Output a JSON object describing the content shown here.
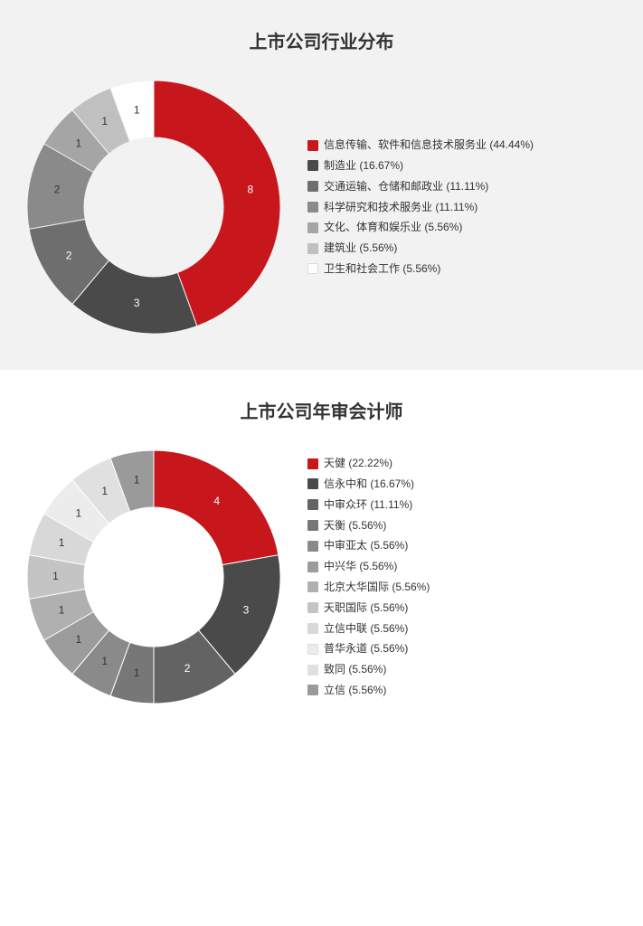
{
  "chart1": {
    "type": "donut",
    "title": "上市公司行业分布",
    "panel_bg": "#f2f2f2",
    "donut_bg": "#f2f2f2",
    "size": 300,
    "inner_ratio": 0.55,
    "title_fontsize": 20,
    "label_fontsize": 12,
    "legend_fontsize": 12,
    "slices": [
      {
        "label": "信息传输、软件和信息技术服务业",
        "value": 8,
        "pct": "44.44%",
        "color": "#c8161d",
        "label_color": "light"
      },
      {
        "label": "制造业",
        "value": 3,
        "pct": "16.67%",
        "color": "#4a4a4a",
        "label_color": "light"
      },
      {
        "label": "交通运输、仓储和邮政业",
        "value": 2,
        "pct": "11.11%",
        "color": "#6e6e6e",
        "label_color": "light"
      },
      {
        "label": "科学研究和技术服务业",
        "value": 2,
        "pct": "11.11%",
        "color": "#8a8a8a",
        "label_color": "dark"
      },
      {
        "label": "文化、体育和娱乐业",
        "value": 1,
        "pct": "5.56%",
        "color": "#a5a5a5",
        "label_color": "dark"
      },
      {
        "label": "建筑业",
        "value": 1,
        "pct": "5.56%",
        "color": "#c0c0c0",
        "label_color": "dark"
      },
      {
        "label": "卫生和社会工作",
        "value": 1,
        "pct": "5.56%",
        "color": "#ffffff",
        "label_color": "dark"
      }
    ]
  },
  "chart2": {
    "type": "donut",
    "title": "上市公司年审会计师",
    "panel_bg": "#ffffff",
    "donut_bg": "#ffffff",
    "size": 300,
    "inner_ratio": 0.55,
    "title_fontsize": 20,
    "label_fontsize": 12,
    "legend_fontsize": 12,
    "slices": [
      {
        "label": "天健",
        "value": 4,
        "pct": "22.22%",
        "color": "#c8161d",
        "label_color": "light"
      },
      {
        "label": "信永中和",
        "value": 3,
        "pct": "16.67%",
        "color": "#4a4a4a",
        "label_color": "light"
      },
      {
        "label": "中审众环",
        "value": 2,
        "pct": "11.11%",
        "color": "#636363",
        "label_color": "light"
      },
      {
        "label": "天衡",
        "value": 1,
        "pct": "5.56%",
        "color": "#777777",
        "label_color": "dark"
      },
      {
        "label": "中审亚太",
        "value": 1,
        "pct": "5.56%",
        "color": "#8a8a8a",
        "label_color": "dark"
      },
      {
        "label": "中兴华",
        "value": 1,
        "pct": "5.56%",
        "color": "#9c9c9c",
        "label_color": "dark"
      },
      {
        "label": "北京大华国际",
        "value": 1,
        "pct": "5.56%",
        "color": "#b0b0b0",
        "label_color": "dark"
      },
      {
        "label": "天职国际",
        "value": 1,
        "pct": "5.56%",
        "color": "#c4c4c4",
        "label_color": "dark"
      },
      {
        "label": "立信中联",
        "value": 1,
        "pct": "5.56%",
        "color": "#d8d8d8",
        "label_color": "dark"
      },
      {
        "label": "普华永道",
        "value": 1,
        "pct": "5.56%",
        "color": "#ececec",
        "label_color": "dark"
      },
      {
        "label": "致同",
        "value": 1,
        "pct": "5.56%",
        "color": "#e0e0e0",
        "label_color": "dark"
      },
      {
        "label": "立信",
        "value": 1,
        "pct": "5.56%",
        "color": "#9a9a9a",
        "label_color": "dark"
      }
    ]
  }
}
